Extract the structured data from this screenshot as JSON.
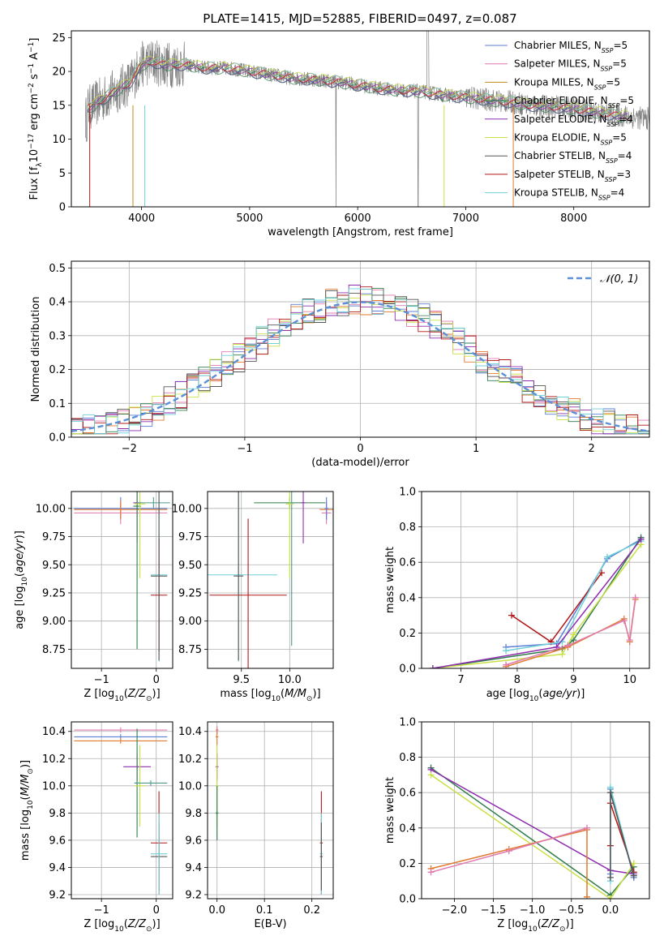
{
  "title": "PLATE=1415, MJD=52885, FIBERID=0497, z=0.087",
  "colors": {
    "Chabrier MILES": "#5b7fd6",
    "Salpeter MILES": "#e07ab0",
    "Kroupa MILES": "#c08a1e",
    "Chabrier ELODIE": "#2f7d4a",
    "Salpeter ELODIE": "#8e2db0",
    "Kroupa ELODIE": "#c9e045",
    "Chabrier STELIB": "#555555",
    "Salpeter STELIB": "#b01818",
    "Kroupa STELIB": "#6fd0d8",
    "orange": "#e07b30",
    "pink": "#e28ad6",
    "teal": "#4e9a8a"
  },
  "chart_data": [
    {
      "id": "spectrum",
      "type": "line",
      "xlabel": "wavelength [Angstrom, rest frame]",
      "ylabel": "Flux [f_λ 10^-17 erg cm^-2 s^-1 A^-1]",
      "xlim": [
        3350,
        8700
      ],
      "ylim": [
        0,
        26
      ],
      "xticks": [
        4000,
        5000,
        6000,
        7000,
        8000
      ],
      "yticks": [
        0,
        5,
        10,
        15,
        20,
        25
      ],
      "legend_position": "upper-right",
      "legend": [
        {
          "main": "Chabrier MILES, N",
          "sub": "SSP",
          "tail": "=5"
        },
        {
          "main": "Salpeter MILES, N",
          "sub": "SSP",
          "tail": "=5"
        },
        {
          "main": "Kroupa MILES, N",
          "sub": "SSP",
          "tail": "=5"
        },
        {
          "main": "Chabrier ELODIE, N",
          "sub": "SSP",
          "tail": "=5"
        },
        {
          "main": "Salpeter ELODIE, N",
          "sub": "SSP",
          "tail": "=4"
        },
        {
          "main": "Kroupa ELODIE, N",
          "sub": "SSP",
          "tail": "=5"
        },
        {
          "main": "Chabrier STELIB, N",
          "sub": "SSP",
          "tail": "=4"
        },
        {
          "main": "Salpeter STELIB, N",
          "sub": "SSP",
          "tail": "=3"
        },
        {
          "main": "Kroupa STELIB, N",
          "sub": "SSP",
          "tail": "=4"
        }
      ],
      "continuum": [
        [
          3500,
          14.5
        ],
        [
          3600,
          15.5
        ],
        [
          3700,
          16.5
        ],
        [
          3800,
          17.5
        ],
        [
          3900,
          18.5
        ],
        [
          4000,
          21
        ],
        [
          4100,
          21.5
        ],
        [
          4200,
          21
        ],
        [
          4400,
          21
        ],
        [
          4600,
          20.5
        ],
        [
          4800,
          20.5
        ],
        [
          5000,
          20.0
        ],
        [
          5200,
          19.5
        ],
        [
          5400,
          19.0
        ],
        [
          5600,
          18.8
        ],
        [
          5800,
          18.5
        ],
        [
          6000,
          18.0
        ],
        [
          6200,
          17.5
        ],
        [
          6400,
          17.2
        ],
        [
          6600,
          17.0
        ],
        [
          6800,
          16.5
        ],
        [
          7000,
          16.2
        ],
        [
          7200,
          15.8
        ],
        [
          7400,
          15.5
        ],
        [
          7600,
          15.0
        ],
        [
          7800,
          14.8
        ],
        [
          8000,
          14.5
        ],
        [
          8200,
          14.0
        ],
        [
          8400,
          13.5
        ],
        [
          8700,
          13.0
        ]
      ]
    },
    {
      "id": "residuals",
      "type": "step",
      "xlabel": "(data-model)/error",
      "ylabel": "Normed distribution",
      "xlim": [
        -2.5,
        2.5
      ],
      "ylim": [
        0,
        0.52
      ],
      "xticks": [
        -2,
        -1,
        0,
        1,
        2
      ],
      "yticks": [
        0.0,
        0.1,
        0.2,
        0.3,
        0.4,
        0.5
      ],
      "legend_position": "upper-right",
      "normal_curve": {
        "label": "𝒩(0, 1)",
        "mean": 0,
        "sigma": 1
      },
      "bin_width": 0.1,
      "bins_start": -2.5
    },
    {
      "id": "age_vs_Z",
      "type": "errorbar",
      "xlabel": "Z [log10(Z/Z☉)]",
      "ylabel": "age [log10(age/yr)]",
      "xlim": [
        -1.55,
        0.3
      ],
      "ylim": [
        8.58,
        10.15
      ],
      "xticks": [
        -1,
        0
      ],
      "yticks": [
        8.75,
        9.0,
        9.25,
        9.5,
        9.75,
        10.0
      ],
      "points": [
        {
          "x": -0.65,
          "y": 10.0,
          "xerr": 0.85,
          "yerr": 0.1,
          "key": "Chabrier MILES"
        },
        {
          "x": -0.65,
          "y": 9.96,
          "xerr": 0.85,
          "yerr": 0.1,
          "key": "Salpeter MILES"
        },
        {
          "x": -0.65,
          "y": 9.99,
          "xerr": 0.85,
          "yerr": 0.08,
          "key": "orange"
        },
        {
          "x": -0.35,
          "y": 10.05,
          "xerr": 0.07,
          "yerr": 0.36,
          "key": "Salpeter ELODIE"
        },
        {
          "x": -0.35,
          "y": 10.02,
          "xerr": 0.07,
          "yerr": 1.27,
          "key": "Chabrier ELODIE"
        },
        {
          "x": -0.3,
          "y": 10.04,
          "xerr": 0.1,
          "yerr": 0.66,
          "key": "Kroupa ELODIE"
        },
        {
          "x": -0.05,
          "y": 10.05,
          "xerr": 0.3,
          "yerr": 0.05,
          "key": "teal"
        },
        {
          "x": 0.05,
          "y": 9.41,
          "xerr": 0.15,
          "yerr": 0.77,
          "key": "Kroupa STELIB"
        },
        {
          "x": 0.05,
          "y": 9.23,
          "xerr": 0.15,
          "yerr": 0.5,
          "key": "Salpeter STELIB"
        },
        {
          "x": 0.05,
          "y": 9.4,
          "xerr": 0.15,
          "yerr": 0.75,
          "key": "Chabrier STELIB"
        }
      ]
    },
    {
      "id": "age_vs_mass",
      "type": "errorbar",
      "xlabel": "mass [log10(M/M☉)]",
      "ylabel": "",
      "xlim": [
        9.15,
        10.45
      ],
      "ylim": [
        8.58,
        10.15
      ],
      "xticks": [
        9.5,
        10.0
      ],
      "yticks": [
        8.75,
        9.0,
        9.25,
        9.5,
        9.75,
        10.0
      ],
      "points": [
        {
          "x": 9.47,
          "y": 9.41,
          "xerr": 0.4,
          "yerr": 0.77,
          "key": "Kroupa STELIB"
        },
        {
          "x": 9.57,
          "y": 9.23,
          "xerr": 0.4,
          "yerr": 0.68,
          "key": "Salpeter STELIB"
        },
        {
          "x": 9.47,
          "y": 9.4,
          "xerr": 0.05,
          "yerr": 0.75,
          "key": "Chabrier STELIB"
        },
        {
          "x": 10.0,
          "y": 10.05,
          "xerr": 0.37,
          "yerr": 0.05,
          "key": "Chabrier ELODIE"
        },
        {
          "x": 10.02,
          "y": 10.05,
          "xerr": 0.04,
          "yerr": 1.27,
          "key": "teal"
        },
        {
          "x": 10.0,
          "y": 10.04,
          "xerr": 0.04,
          "yerr": 0.66,
          "key": "Kroupa ELODIE"
        },
        {
          "x": 10.14,
          "y": 10.05,
          "xerr": 0.02,
          "yerr": 0.36,
          "key": "Salpeter ELODIE"
        },
        {
          "x": 10.38,
          "y": 9.99,
          "xerr": 0.07,
          "yerr": 0.06,
          "key": "orange"
        },
        {
          "x": 10.38,
          "y": 9.96,
          "xerr": 0.05,
          "yerr": 0.1,
          "key": "Salpeter MILES"
        },
        {
          "x": 10.38,
          "y": 10.0,
          "xerr": 0.02,
          "yerr": 0.1,
          "key": "Chabrier MILES"
        }
      ]
    },
    {
      "id": "mass_weight_vs_age",
      "type": "line",
      "xlabel": "age  [log10(age/yr)]",
      "ylabel": "mass weight",
      "xlim": [
        6.3,
        10.35
      ],
      "ylim": [
        0,
        1.0
      ],
      "xticks": [
        7,
        8,
        9,
        10
      ],
      "yticks": [
        0.0,
        0.2,
        0.4,
        0.6,
        0.8,
        1.0
      ],
      "series": [
        {
          "key": "Chabrier MILES",
          "x": [
            7.8,
            8.7,
            9.6,
            10.2
          ],
          "y": [
            0.12,
            0.14,
            0.62,
            0.73
          ]
        },
        {
          "key": "Salpeter STELIB",
          "x": [
            7.9,
            8.6,
            9.5
          ],
          "y": [
            0.3,
            0.15,
            0.54
          ]
        },
        {
          "key": "Kroupa STELIB",
          "x": [
            7.8,
            8.8,
            9.6,
            10.2
          ],
          "y": [
            0.1,
            0.15,
            0.63,
            0.72
          ]
        },
        {
          "key": "Chabrier ELODIE",
          "x": [
            6.5,
            8.8,
            9.0,
            10.2
          ],
          "y": [
            0.0,
            0.11,
            0.16,
            0.74
          ]
        },
        {
          "key": "Kroupa ELODIE",
          "x": [
            6.5,
            8.8,
            9.0,
            10.2
          ],
          "y": [
            0.0,
            0.08,
            0.19,
            0.7
          ]
        },
        {
          "key": "Salpeter ELODIE",
          "x": [
            6.5,
            8.7,
            10.2
          ],
          "y": [
            0.0,
            0.12,
            0.73
          ]
        },
        {
          "key": "orange",
          "x": [
            7.8,
            8.9,
            9.9,
            10.0,
            10.1
          ],
          "y": [
            0.01,
            0.12,
            0.28,
            0.15,
            0.39
          ]
        },
        {
          "key": "Salpeter MILES",
          "x": [
            7.8,
            8.9,
            9.9,
            10.0,
            10.1
          ],
          "y": [
            0.02,
            0.13,
            0.27,
            0.16,
            0.4
          ]
        }
      ]
    },
    {
      "id": "mass_vs_Z",
      "type": "errorbar",
      "xlabel": "Z [log10(Z/Z☉)]",
      "ylabel": "mass [log10(M/M☉)]",
      "xlim": [
        -1.55,
        0.3
      ],
      "ylim": [
        9.17,
        10.47
      ],
      "xticks": [
        -1,
        0
      ],
      "yticks": [
        9.2,
        9.4,
        9.6,
        9.8,
        10.0,
        10.2,
        10.4
      ],
      "points": [
        {
          "x": -0.65,
          "y": 10.41,
          "xerr": 0.85,
          "yerr": 0.02,
          "key": "Salpeter MILES"
        },
        {
          "x": -0.65,
          "y": 10.36,
          "xerr": 0.85,
          "yerr": 0.02,
          "key": "Chabrier MILES"
        },
        {
          "x": -0.65,
          "y": 10.33,
          "xerr": 0.85,
          "yerr": 0.02,
          "key": "orange"
        },
        {
          "x": -0.35,
          "y": 10.14,
          "xerr": 0.25,
          "yerr": 0.1,
          "key": "Salpeter ELODIE"
        },
        {
          "x": -0.35,
          "y": 10.02,
          "xerr": 0.05,
          "yerr": 0.4,
          "key": "Chabrier ELODIE"
        },
        {
          "x": -0.3,
          "y": 10.0,
          "xerr": 0.1,
          "yerr": 0.3,
          "key": "Kroupa ELODIE"
        },
        {
          "x": -0.1,
          "y": 10.02,
          "xerr": 0.3,
          "yerr": 0.02,
          "key": "teal"
        },
        {
          "x": 0.05,
          "y": 9.58,
          "xerr": 0.15,
          "yerr": 0.38,
          "key": "Salpeter STELIB"
        },
        {
          "x": 0.05,
          "y": 9.48,
          "xerr": 0.15,
          "yerr": 0.25,
          "key": "Chabrier STELIB"
        },
        {
          "x": 0.05,
          "y": 9.5,
          "xerr": 0.15,
          "yerr": 0.3,
          "key": "Kroupa STELIB"
        }
      ]
    },
    {
      "id": "mass_vs_EBV",
      "type": "errorbar",
      "xlabel": "E(B-V)",
      "ylabel": "",
      "xlim": [
        -0.02,
        0.245
      ],
      "ylim": [
        9.17,
        10.47
      ],
      "xticks": [
        0.0,
        0.1,
        0.2
      ],
      "yticks": [
        9.2,
        9.4,
        9.6,
        9.8,
        10.0,
        10.2,
        10.4
      ],
      "points": [
        {
          "x": 0.0,
          "y": 10.41,
          "xerr": 0.003,
          "yerr": 0.03,
          "key": "Salpeter MILES"
        },
        {
          "x": 0.0,
          "y": 10.36,
          "xerr": 0.003,
          "yerr": 0.06,
          "key": "orange"
        },
        {
          "x": 0.0,
          "y": 10.14,
          "xerr": 0.003,
          "yerr": 0.1,
          "key": "Salpeter ELODIE"
        },
        {
          "x": 0.0,
          "y": 10.0,
          "xerr": 0.003,
          "yerr": 0.3,
          "key": "Kroupa ELODIE"
        },
        {
          "x": 0.0,
          "y": 9.8,
          "xerr": 0.003,
          "yerr": 0.2,
          "key": "Chabrier ELODIE"
        },
        {
          "x": 0.22,
          "y": 9.58,
          "xerr": 0.003,
          "yerr": 0.38,
          "key": "Salpeter STELIB"
        },
        {
          "x": 0.22,
          "y": 9.5,
          "xerr": 0.003,
          "yerr": 0.3,
          "key": "Kroupa STELIB"
        },
        {
          "x": 0.22,
          "y": 9.48,
          "xerr": 0.003,
          "yerr": 0.25,
          "key": "Chabrier STELIB"
        }
      ]
    },
    {
      "id": "mass_weight_vs_Z",
      "type": "line",
      "xlabel": "Z [log10(Z/Z☉)]",
      "ylabel": "mass weight",
      "xlim": [
        -2.42,
        0.5
      ],
      "ylim": [
        0,
        1.0
      ],
      "xticks": [
        -2.0,
        -1.5,
        -1.0,
        -0.5,
        0.0
      ],
      "yticks": [
        0.0,
        0.2,
        0.4,
        0.6,
        0.8,
        1.0
      ],
      "series": [
        {
          "key": "Chabrier ELODIE",
          "x": [
            -2.3,
            0.0,
            0.3
          ],
          "y": [
            0.74,
            0.02,
            0.18
          ]
        },
        {
          "key": "Salpeter ELODIE",
          "x": [
            -2.3,
            0.0,
            0.3
          ],
          "y": [
            0.73,
            0.16,
            0.14
          ]
        },
        {
          "key": "Kroupa ELODIE",
          "x": [
            -2.3,
            0.0,
            0.3
          ],
          "y": [
            0.7,
            0.0,
            0.2
          ]
        },
        {
          "key": "orange",
          "x": [
            -2.3,
            -1.3,
            -0.3,
            -0.3
          ],
          "y": [
            0.17,
            0.28,
            0.39,
            0.01
          ]
        },
        {
          "key": "Salpeter MILES",
          "x": [
            -2.3,
            -1.3,
            -0.3
          ],
          "y": [
            0.15,
            0.27,
            0.4
          ]
        },
        {
          "key": "Salpeter STELIB",
          "x": [
            0.0,
            0.0,
            0.3
          ],
          "y": [
            0.3,
            0.54,
            0.15
          ]
        },
        {
          "key": "Chabrier MILES",
          "x": [
            0.0,
            0.0,
            0.3
          ],
          "y": [
            0.14,
            0.62,
            0.12
          ]
        },
        {
          "key": "Kroupa STELIB",
          "x": [
            0.0,
            0.0,
            0.3
          ],
          "y": [
            0.1,
            0.63,
            0.13
          ]
        },
        {
          "key": "Chabrier STELIB",
          "x": [
            0.0,
            0.0,
            0.3
          ],
          "y": [
            0.12,
            0.6,
            0.13
          ]
        }
      ]
    }
  ]
}
